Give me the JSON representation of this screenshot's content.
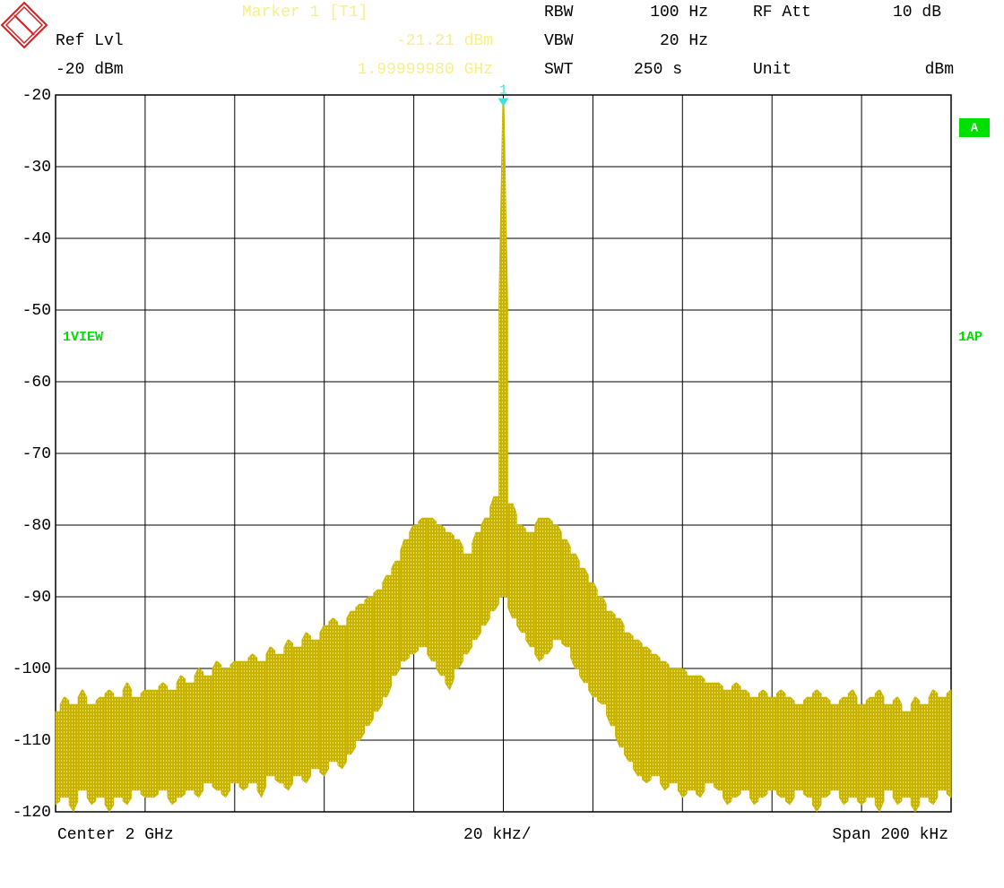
{
  "chart_data": {
    "type": "spectrum",
    "header": {
      "marker_title": "Marker 1 [T1]",
      "ref_lvl_label": "Ref Lvl",
      "ref_lvl_value": "-20 dBm",
      "marker_level": "-21.21 dBm",
      "marker_freq": "1.99999980 GHz",
      "rbw_label": "RBW",
      "rbw_value": "100 Hz",
      "vbw_label": "VBW",
      "vbw_value": "20 Hz",
      "swt_label": "SWT",
      "swt_value": "250 s",
      "rfatt_label": "RF Att",
      "rfatt_value": "10 dB",
      "unit_label": "Unit",
      "unit_value": "dBm"
    },
    "side_labels": {
      "trace": "A",
      "view": "1VIEW",
      "detector": "1AP"
    },
    "marker": {
      "label": "1",
      "index": 50,
      "color": "#40e0e0"
    },
    "footer": {
      "center": "Center 2 GHz",
      "div": "20 kHz/",
      "span": "Span 200 kHz"
    },
    "ylim": [
      -120,
      -20
    ],
    "yticks": [
      -20,
      -30,
      -40,
      -50,
      -60,
      -70,
      -80,
      -90,
      -100,
      -110,
      -120
    ],
    "grid": true,
    "color": "#c8b400",
    "series": [
      {
        "values": [
          -106,
          -104,
          -105,
          -103,
          -105,
          -104,
          -103,
          -104,
          -102,
          -104,
          -103,
          -103,
          -102,
          -103,
          -101,
          -102,
          -100,
          -101,
          -99,
          -100,
          -99,
          -99,
          -98,
          -99,
          -97,
          -98,
          -96,
          -97,
          -95,
          -96,
          -94,
          -93,
          -94,
          -92,
          -91,
          -90,
          -89,
          -87,
          -85,
          -82,
          -80,
          -79,
          -79,
          -80,
          -81,
          -82,
          -84,
          -81,
          -79,
          -76,
          -21.21,
          -77,
          -80,
          -81,
          -79,
          -79,
          -80,
          -82,
          -84,
          -86,
          -88,
          -90,
          -92,
          -93,
          -95,
          -96,
          -97,
          -98,
          -99,
          -100,
          -100,
          -101,
          -101,
          -102,
          -102,
          -103,
          -102,
          -103,
          -104,
          -103,
          -104,
          -103,
          -104,
          -105,
          -104,
          -103,
          -104,
          -105,
          -104,
          -103,
          -105,
          -104,
          -103,
          -105,
          -104,
          -106,
          -104,
          -105,
          -103,
          -104,
          -103
        ]
      },
      {
        "values": [
          -119,
          -118,
          -120,
          -117,
          -119,
          -118,
          -120,
          -118,
          -119,
          -117,
          -118,
          -118,
          -117,
          -119,
          -118,
          -117,
          -118,
          -116,
          -117,
          -118,
          -116,
          -117,
          -116,
          -118,
          -115,
          -116,
          -117,
          -115,
          -116,
          -114,
          -115,
          -113,
          -114,
          -112,
          -110,
          -108,
          -106,
          -104,
          -101,
          -99,
          -98,
          -97,
          -99,
          -101,
          -103,
          -100,
          -98,
          -96,
          -94,
          -92,
          -90,
          -93,
          -95,
          -97,
          -99,
          -98,
          -96,
          -97,
          -100,
          -102,
          -104,
          -105,
          -108,
          -111,
          -113,
          -115,
          -116,
          -115,
          -117,
          -116,
          -118,
          -117,
          -118,
          -116,
          -117,
          -119,
          -118,
          -117,
          -119,
          -118,
          -117,
          -118,
          -119,
          -117,
          -118,
          -120,
          -118,
          -117,
          -119,
          -118,
          -119,
          -118,
          -120,
          -117,
          -119,
          -118,
          -120,
          -118,
          -119,
          -117,
          -118
        ]
      }
    ]
  }
}
